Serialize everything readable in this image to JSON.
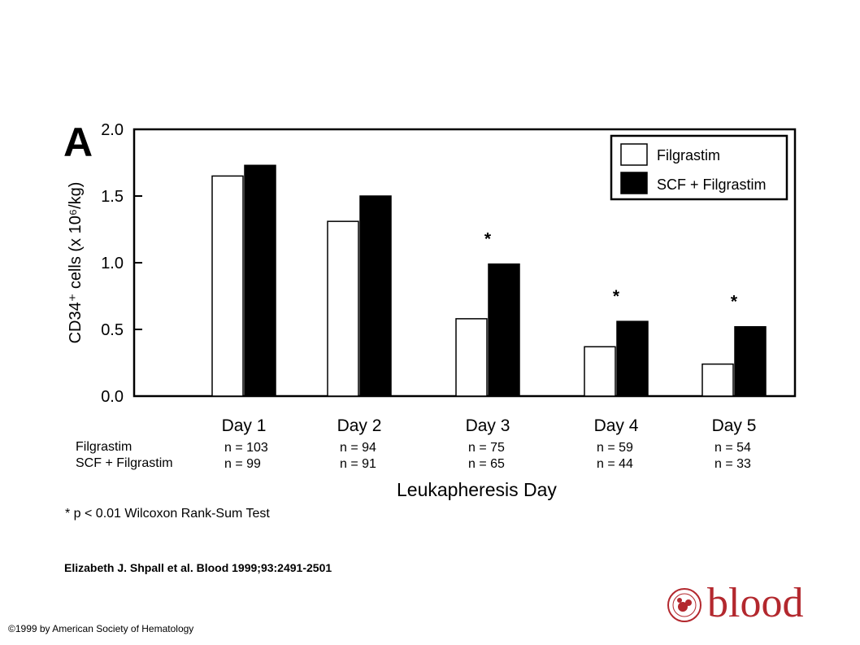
{
  "figure": {
    "panel_label": "A",
    "citation": "Elizabeth J. Shpall et al. Blood 1999;93:2491-2501",
    "copyright": "©1999 by American Society of Hematology",
    "logo_text": "blood",
    "footnote": "* p < 0.01 Wilcoxon Rank-Sum Test"
  },
  "chart_data": {
    "type": "bar",
    "title": "",
    "xlabel": "Leukapheresis Day",
    "ylabel": "CD34⁺ cells (x 10⁶/kg)",
    "ylim": [
      0,
      2.0
    ],
    "yticks": [
      "0.0",
      "0.5",
      "1.0",
      "1.5",
      "2.0"
    ],
    "grid": false,
    "legend_position": "top-right",
    "categories": [
      "Day 1",
      "Day 2",
      "Day 3",
      "Day 4",
      "Day 5"
    ],
    "series": [
      {
        "name": "Filgrastim",
        "color": "#ffffff",
        "values": [
          1.65,
          1.31,
          0.58,
          0.37,
          0.24
        ],
        "n": [
          "n = 103",
          "n = 94",
          "n = 75",
          "n = 59",
          "n = 54"
        ]
      },
      {
        "name": "SCF + Filgrastim",
        "color": "#000000",
        "values": [
          1.73,
          1.5,
          0.99,
          0.56,
          0.52
        ],
        "n": [
          "n =   99",
          "n = 91",
          "n = 65",
          "n = 44",
          "n = 33"
        ]
      }
    ],
    "significant": [
      false,
      false,
      true,
      true,
      true
    ],
    "significance_marker": "*",
    "n_row_labels": [
      "Filgrastim",
      "SCF + Filgrastim"
    ]
  },
  "colors": {
    "logo": "#b3282e"
  }
}
